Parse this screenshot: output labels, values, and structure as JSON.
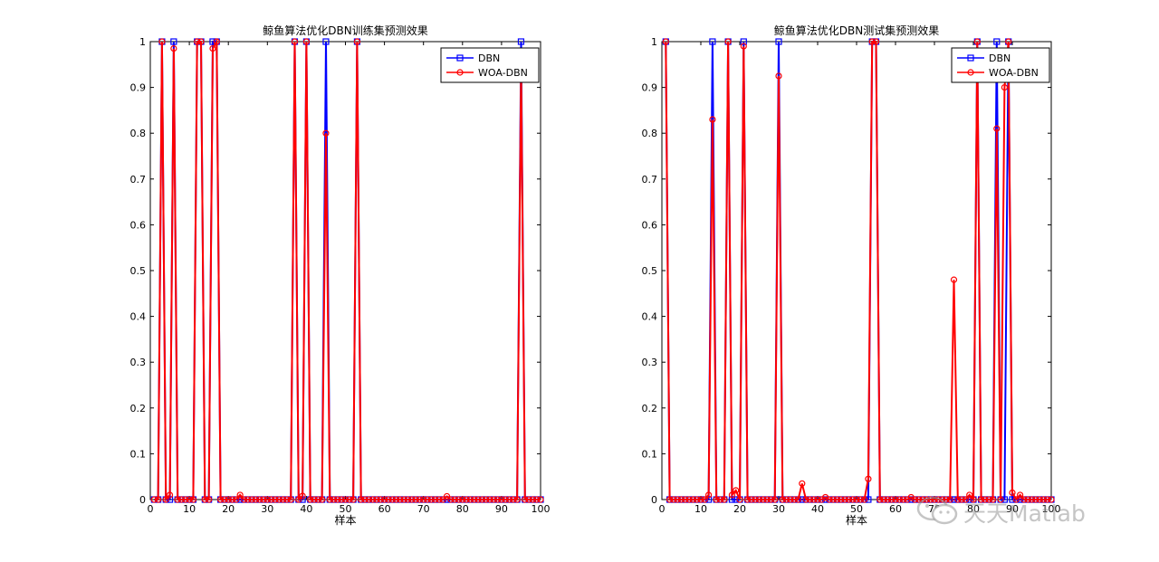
{
  "chart_data": [
    {
      "type": "line",
      "title": "鲸鱼算法优化DBN训练集预测效果",
      "xlabel": "样本",
      "ylabel": "",
      "xlim": [
        0,
        100
      ],
      "ylim": [
        0,
        1
      ],
      "xticks": [
        "0",
        "10",
        "20",
        "30",
        "40",
        "50",
        "60",
        "70",
        "80",
        "90",
        "100"
      ],
      "yticks": [
        "0",
        "0.1",
        "0.2",
        "0.3",
        "0.4",
        "0.5",
        "0.6",
        "0.7",
        "0.8",
        "0.9",
        "1"
      ],
      "grid": false,
      "legend": "top-right",
      "colors": {
        "DBN": "#0000ff",
        "WOA-DBN": "#ff0000"
      },
      "series": [
        {
          "name": "DBN",
          "marker": "square",
          "ones": [
            3,
            6,
            12,
            13,
            16,
            17,
            37,
            40,
            45,
            53,
            95
          ]
        },
        {
          "name": "WOA-DBN",
          "marker": "circle",
          "ones": [
            3,
            12,
            13,
            17,
            37,
            40,
            53
          ],
          "special": {
            "6": 0.985,
            "16": 0.985,
            "45": 0.8,
            "95": 0.95,
            "5": 0.01,
            "23": 0.01,
            "39": 0.008,
            "76": 0.007
          }
        }
      ]
    },
    {
      "type": "line",
      "title": "鲸鱼算法优化DBN测试集预测效果",
      "xlabel": "样本",
      "ylabel": "",
      "xlim": [
        0,
        100
      ],
      "ylim": [
        0,
        1
      ],
      "xticks": [
        "0",
        "10",
        "20",
        "30",
        "40",
        "50",
        "60",
        "70",
        "80",
        "90",
        "100"
      ],
      "yticks": [
        "0",
        "0.1",
        "0.2",
        "0.3",
        "0.4",
        "0.5",
        "0.6",
        "0.7",
        "0.8",
        "0.9",
        "1"
      ],
      "grid": false,
      "legend": "top-right",
      "colors": {
        "DBN": "#0000ff",
        "WOA-DBN": "#ff0000"
      },
      "series": [
        {
          "name": "DBN",
          "marker": "square",
          "ones": [
            1,
            13,
            17,
            21,
            30,
            54,
            55,
            81,
            86,
            89
          ]
        },
        {
          "name": "WOA-DBN",
          "marker": "circle",
          "ones": [
            1,
            17,
            54,
            55,
            81,
            89
          ],
          "special": {
            "13": 0.83,
            "21": 0.99,
            "30": 0.925,
            "86": 0.81,
            "88": 0.9,
            "75": 0.48,
            "36": 0.035,
            "53": 0.045,
            "12": 0.01,
            "19": 0.02,
            "18": 0.01,
            "42": 0.005,
            "64": 0.005,
            "79": 0.01,
            "90": 0.015,
            "92": 0.01
          }
        }
      ]
    }
  ],
  "watermark": {
    "text": "天天Matlab",
    "icon": "wechat-icon"
  }
}
